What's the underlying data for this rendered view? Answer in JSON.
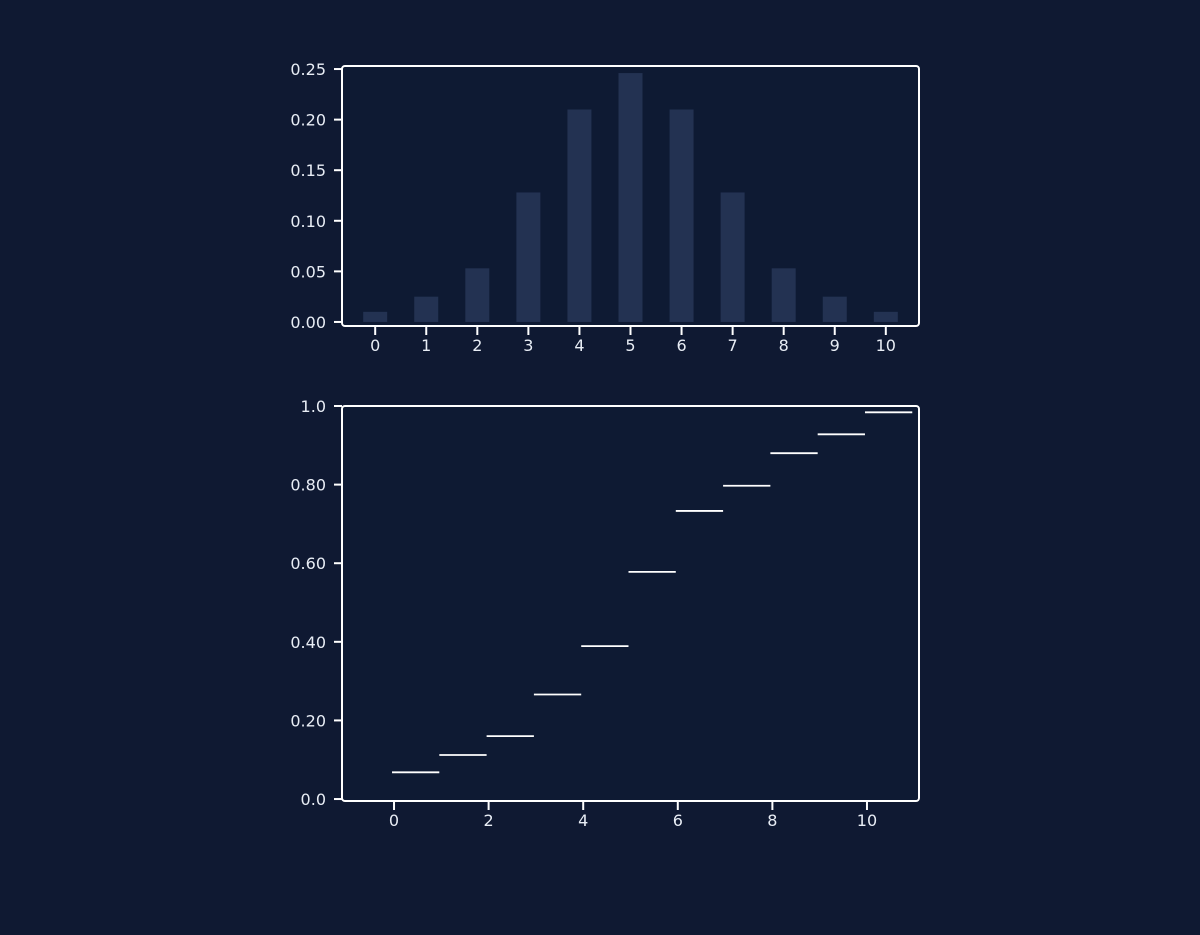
{
  "colors": {
    "background": "#0f1932",
    "panel_background": "#0e1a33",
    "axes_color": "#ffffff",
    "bar_color": "#233252",
    "step_color": "#ffffff",
    "text_color": "#e8edf5"
  },
  "chart_data": [
    {
      "type": "bar",
      "title": "",
      "xlabel": "",
      "ylabel": "",
      "categories": [
        0,
        1,
        2,
        3,
        4,
        5,
        6,
        7,
        8,
        9,
        10
      ],
      "values": [
        0.01,
        0.025,
        0.053,
        0.128,
        0.21,
        0.246,
        0.21,
        0.128,
        0.053,
        0.025,
        0.01
      ],
      "xlim": [
        -0.65,
        10.65
      ],
      "ylim": [
        -0.004,
        0.253
      ],
      "yticks": [
        0.0,
        0.05,
        0.1,
        0.15,
        0.2,
        0.25
      ],
      "yticklabels": [
        "0.00",
        "0.05",
        "0.10",
        "0.15",
        "0.20",
        "0.25"
      ],
      "xticks": [
        0,
        1,
        2,
        3,
        4,
        5,
        6,
        7,
        8,
        9,
        10
      ],
      "xticklabels": [
        "0",
        "1",
        "2",
        "3",
        "4",
        "5",
        "6",
        "7",
        "8",
        "9",
        "10"
      ],
      "grid": false
    },
    {
      "type": "line",
      "title": "",
      "xlabel": "",
      "ylabel": "",
      "segments": [
        {
          "x0": 0,
          "x1": 1,
          "y": 0.068
        },
        {
          "x0": 1,
          "x1": 2,
          "y": 0.112
        },
        {
          "x0": 2,
          "x1": 3,
          "y": 0.16
        },
        {
          "x0": 3,
          "x1": 4,
          "y": 0.266
        },
        {
          "x0": 4,
          "x1": 5,
          "y": 0.389
        },
        {
          "x0": 5,
          "x1": 6,
          "y": 0.578
        },
        {
          "x0": 6,
          "x1": 7,
          "y": 0.733
        },
        {
          "x0": 7,
          "x1": 8,
          "y": 0.797
        },
        {
          "x0": 8,
          "x1": 9,
          "y": 0.88
        },
        {
          "x0": 9,
          "x1": 10,
          "y": 0.928
        },
        {
          "x0": 10,
          "x1": 11,
          "y": 0.984
        }
      ],
      "xlim": [
        -1.1,
        11.1
      ],
      "ylim": [
        -0.005,
        1.0
      ],
      "yticks": [
        0.0,
        0.2,
        0.4,
        0.6,
        0.8,
        1.0
      ],
      "yticklabels": [
        "0.0",
        "0.20",
        "0.40",
        "0.60",
        "0.80",
        "1.0"
      ],
      "xticks": [
        0,
        2,
        4,
        6,
        8,
        10
      ],
      "xticklabels": [
        "0",
        "2",
        "4",
        "6",
        "8",
        "10"
      ],
      "grid": false
    }
  ]
}
